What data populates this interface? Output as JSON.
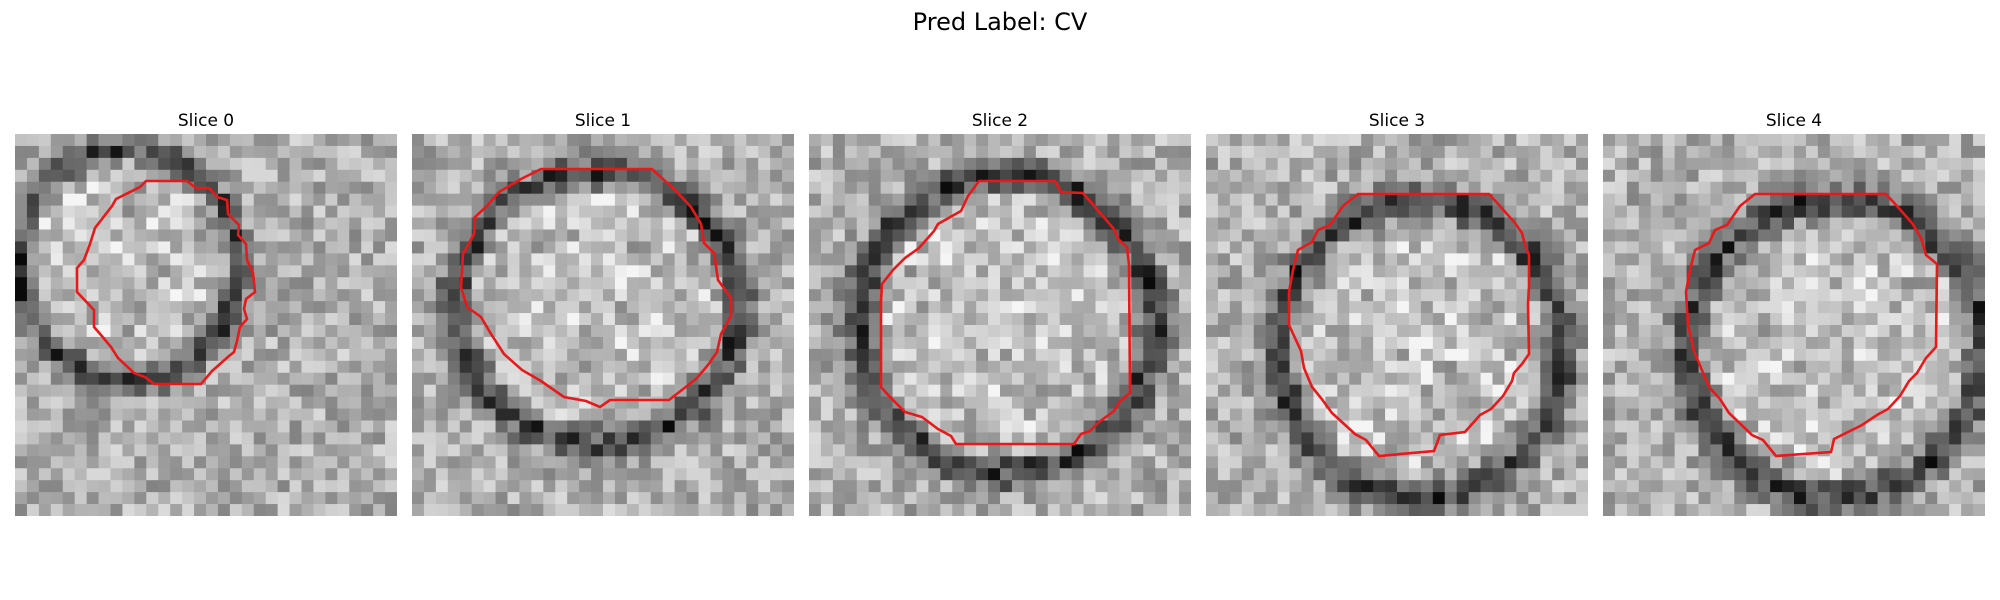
{
  "figure": {
    "title": "Pred Label: CV"
  },
  "panels": [
    {
      "title": "Slice 0"
    },
    {
      "title": "Slice 1"
    },
    {
      "title": "Slice 2"
    },
    {
      "title": "Slice 3"
    },
    {
      "title": "Slice 4"
    }
  ],
  "colors": {
    "contour": "#e8191a",
    "background": "#ffffff"
  }
}
